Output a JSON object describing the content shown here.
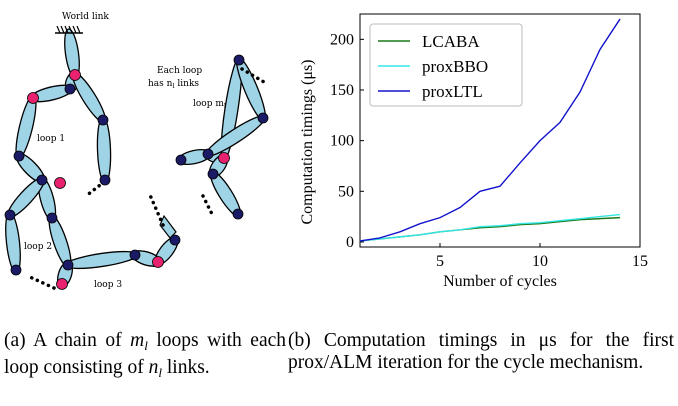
{
  "diagram": {
    "world_link_label": "World link",
    "note_line1": "Each loop",
    "note_line2": "has n",
    "note_sub": "l",
    "note_tail": " links",
    "loop_labels": [
      "loop 1",
      "loop 2",
      "loop 3"
    ],
    "loop_m_label": "loop m",
    "loop_m_sub": "l",
    "colors": {
      "link": "#9fd3e6",
      "joint": "#1a1a66",
      "closing_joint": "#e8226e"
    }
  },
  "chart_data": {
    "type": "line",
    "xlabel": "Number of cycles",
    "ylabel": "Computation timings (μs)",
    "xlim": [
      1,
      15
    ],
    "ylim": [
      -5,
      225
    ],
    "xticks": [
      5,
      10,
      15
    ],
    "yticks": [
      0,
      50,
      100,
      150,
      200
    ],
    "grid": false,
    "legend": "top-left",
    "x": [
      1,
      2,
      3,
      4,
      5,
      6,
      7,
      8,
      9,
      10,
      11,
      12,
      13,
      14
    ],
    "series": [
      {
        "name": "LCABA",
        "color": "#1a7a1a",
        "values": [
          1,
          3,
          5,
          7,
          10,
          12,
          14,
          15,
          17,
          18,
          20,
          22,
          23,
          24
        ]
      },
      {
        "name": "proxBBO",
        "color": "#33e6e6",
        "values": [
          1,
          3,
          5,
          7,
          10,
          12,
          15,
          16,
          18,
          19,
          21,
          23,
          25,
          27
        ]
      },
      {
        "name": "proxLTL",
        "color": "#1414cc",
        "values": [
          1,
          4,
          10,
          18,
          24,
          34,
          50,
          55,
          78,
          100,
          118,
          148,
          190,
          220
        ]
      }
    ]
  },
  "captions": {
    "a_prefix": "(a) A chain of ",
    "a_var": "m",
    "a_var_sub": "l",
    "a_middle": " loops with each loop consisting of ",
    "a_var2": "n",
    "a_var2_sub": "l",
    "a_suffix": " links.",
    "b_text": "(b) Computation timings in μs for the first prox/ALM iteration for the cycle mechanism."
  }
}
